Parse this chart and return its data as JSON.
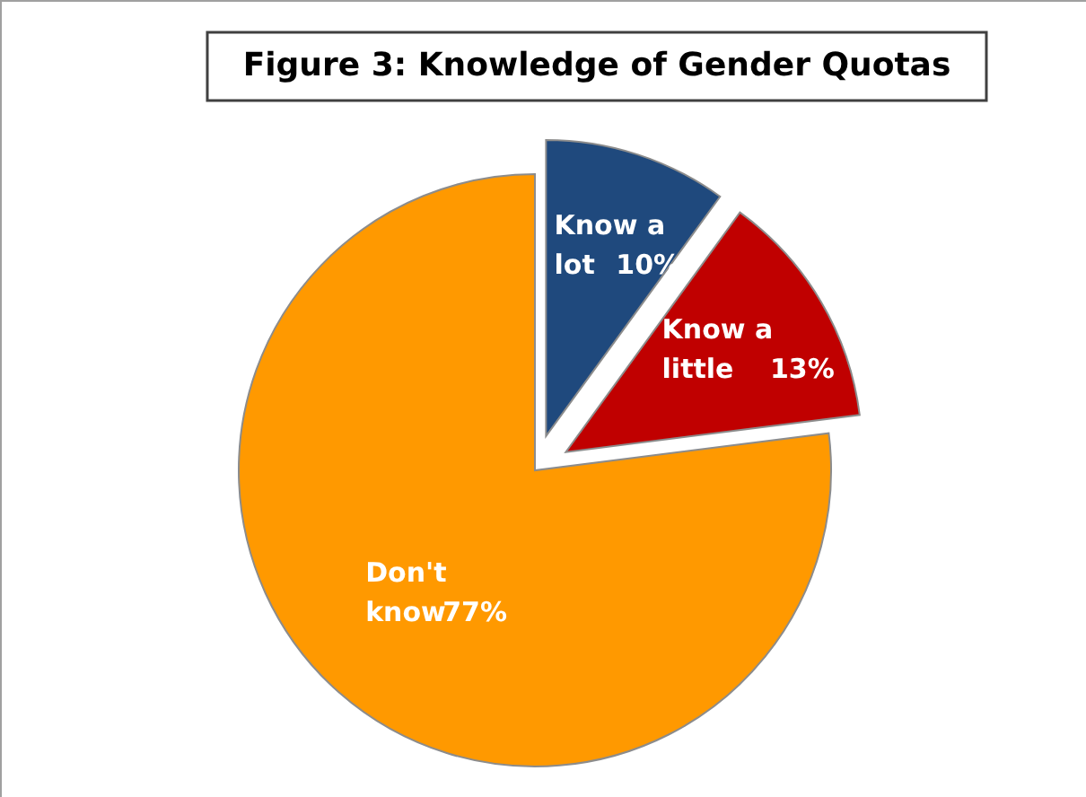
{
  "chart_data": {
    "type": "pie",
    "title": "Figure 3: Knowledge of Gender Quotas",
    "categories": [
      "Know a lot",
      "Know a little",
      "Don't know"
    ],
    "values": [
      10,
      13,
      77
    ],
    "colors": [
      "#1f497d",
      "#c00000",
      "#ff9900"
    ],
    "value_labels": [
      "10%",
      "13%",
      "77%"
    ]
  }
}
